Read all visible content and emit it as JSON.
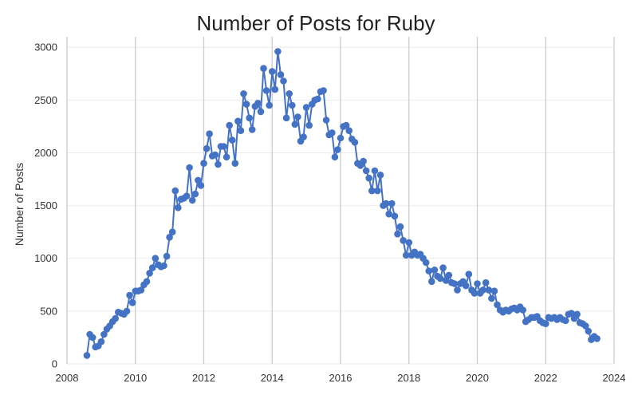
{
  "chart_data": {
    "type": "line",
    "title": "Number of Posts for Ruby",
    "xlabel": "",
    "ylabel": "Number of Posts",
    "xlim": [
      2008,
      2024
    ],
    "ylim": [
      0,
      3100
    ],
    "x_ticks": [
      2008,
      2010,
      2012,
      2014,
      2016,
      2018,
      2020,
      2022,
      2024
    ],
    "x_tick_labels": [
      "2008",
      "2010",
      "2012",
      "2014",
      "2016",
      "2018",
      "2020",
      "2022",
      "2024"
    ],
    "y_ticks": [
      0,
      500,
      1000,
      1500,
      2000,
      2500,
      3000
    ],
    "y_tick_labels": [
      "0",
      "500",
      "1000",
      "1500",
      "2000",
      "2500",
      "3000"
    ],
    "grid": true,
    "series": [
      {
        "color": "#4472c4",
        "x_start": "2008-08",
        "frequency": "monthly",
        "values": [
          80,
          280,
          250,
          160,
          170,
          210,
          280,
          330,
          360,
          400,
          430,
          490,
          480,
          470,
          500,
          650,
          580,
          690,
          690,
          700,
          750,
          780,
          860,
          910,
          1000,
          940,
          920,
          930,
          1020,
          1200,
          1250,
          1640,
          1480,
          1560,
          1570,
          1590,
          1860,
          1550,
          1610,
          1740,
          1690,
          1900,
          2040,
          2180,
          1970,
          1980,
          1890,
          2060,
          2060,
          1960,
          2260,
          2120,
          1900,
          2300,
          2210,
          2560,
          2460,
          2330,
          2220,
          2440,
          2470,
          2390,
          2800,
          2590,
          2450,
          2770,
          2600,
          2960,
          2740,
          2680,
          2330,
          2560,
          2450,
          2270,
          2340,
          2110,
          2150,
          2430,
          2260,
          2460,
          2500,
          2510,
          2580,
          2590,
          2310,
          2170,
          2190,
          1960,
          2030,
          2140,
          2250,
          2260,
          2210,
          2130,
          2100,
          1900,
          1880,
          1920,
          1830,
          1760,
          1640,
          1830,
          1640,
          1790,
          1500,
          1520,
          1420,
          1520,
          1400,
          1230,
          1300,
          1170,
          1030,
          1150,
          1030,
          1060,
          1030,
          1040,
          1000,
          960,
          880,
          780,
          890,
          830,
          810,
          910,
          790,
          840,
          770,
          760,
          700,
          760,
          780,
          740,
          850,
          700,
          670,
          760,
          670,
          700,
          770,
          700,
          620,
          690,
          560,
          510,
          490,
          510,
          500,
          520,
          530,
          510,
          540,
          510,
          400,
          420,
          440,
          440,
          450,
          410,
          390,
          380,
          440,
          430,
          440,
          420,
          440,
          420,
          410,
          470,
          480,
          430,
          470,
          390,
          380,
          360,
          310,
          230,
          260,
          240
        ]
      }
    ]
  }
}
